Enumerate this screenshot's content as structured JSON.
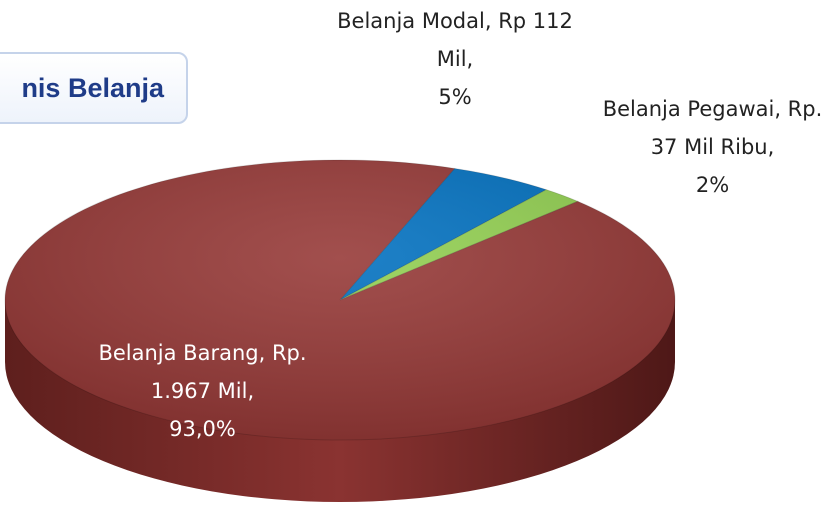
{
  "chart_data": {
    "type": "pie",
    "title": "nis Belanja",
    "categories": [
      "Belanja Modal, Rp 112 Mil,",
      "Belanja Pegawai, Rp. 37 Mil Ribu,",
      "Belanja Barang, Rp. 1.967 Mil,"
    ],
    "values": [
      5,
      2,
      93
    ],
    "value_labels": [
      "5%",
      "2%",
      "93,0%"
    ],
    "colors": [
      "#0070c0",
      "#92d050",
      "#953735"
    ]
  }
}
